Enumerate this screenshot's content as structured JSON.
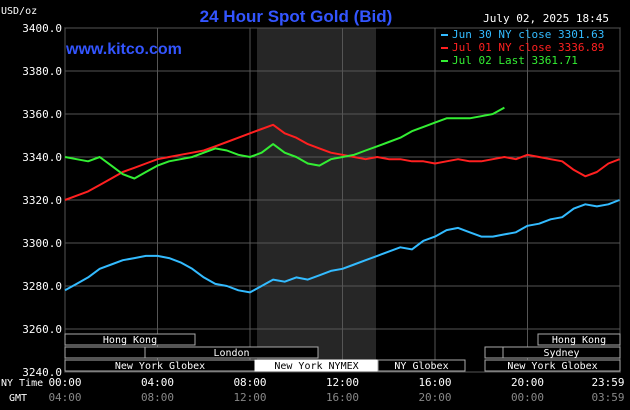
{
  "chart": {
    "title": "24 Hour Spot Gold (Bid)",
    "unit_label": "USD/oz",
    "website": "www.kitco.com",
    "timestamp": "July 02, 2025 18:45",
    "x_row_label_ny": "NY Time",
    "x_row_label_gmt": "GMT",
    "markets": [
      {
        "label": "Hong Kong"
      },
      {
        "label": "London"
      },
      {
        "label": "New York Globex"
      },
      {
        "label": "New York NYMEX"
      },
      {
        "label": "NY Globex"
      },
      {
        "label": "Sydney"
      },
      {
        "label": "New York Globex"
      },
      {
        "label": "Hong Kong"
      }
    ]
  },
  "chart_data": {
    "type": "line",
    "title": "24 Hour Spot Gold (Bid)",
    "xlabel": "NY Time",
    "ylabel": "USD/oz",
    "ylim": [
      3240,
      3400
    ],
    "xlim": [
      0,
      24
    ],
    "y_ticks": [
      "3400.0",
      "3380.0",
      "3360.0",
      "3340.0",
      "3320.0",
      "3300.0",
      "3280.0",
      "3260.0",
      "3240.0"
    ],
    "x_ticks_ny": [
      "00:00",
      "04:00",
      "08:00",
      "12:00",
      "16:00",
      "20:00",
      "23:59"
    ],
    "x_ticks_gmt": [
      "04:00",
      "08:00",
      "12:00",
      "16:00",
      "20:00",
      "00:00",
      "03:59"
    ],
    "grid": true,
    "legend_position": "top-right",
    "series": [
      {
        "name": "Jun 30 NY close 3301.63",
        "color": "#33bbff",
        "x": [
          0,
          0.5,
          1,
          1.5,
          2,
          2.5,
          3,
          3.5,
          4,
          4.5,
          5,
          5.5,
          6,
          6.5,
          7,
          7.5,
          8,
          8.5,
          9,
          9.5,
          10,
          10.5,
          11,
          11.5,
          12,
          12.5,
          13,
          13.5,
          14,
          14.5,
          15,
          15.5,
          16,
          16.5,
          17,
          17.5,
          18,
          18.5,
          19,
          19.5,
          20,
          20.5,
          21,
          21.5,
          22,
          22.5,
          23,
          23.5,
          23.98
        ],
        "y": [
          3278,
          3281,
          3284,
          3288,
          3290,
          3292,
          3293,
          3294,
          3294,
          3293,
          3291,
          3288,
          3284,
          3281,
          3280,
          3278,
          3277,
          3280,
          3283,
          3282,
          3284,
          3283,
          3285,
          3287,
          3288,
          3290,
          3292,
          3294,
          3296,
          3298,
          3297,
          3301,
          3303,
          3306,
          3307,
          3305,
          3303,
          3303,
          3304,
          3305,
          3308,
          3309,
          3311,
          3312,
          3316,
          3318,
          3317,
          3318,
          3320
        ]
      },
      {
        "name": "Jul 01 NY close 3336.89",
        "color": "#ff2020",
        "x": [
          0,
          0.5,
          1,
          1.5,
          2,
          2.5,
          3,
          3.5,
          4,
          4.5,
          5,
          5.5,
          6,
          6.5,
          7,
          7.5,
          8,
          8.5,
          9,
          9.5,
          10,
          10.5,
          11,
          11.5,
          12,
          12.5,
          13,
          13.5,
          14,
          14.5,
          15,
          15.5,
          16,
          16.5,
          17,
          17.5,
          18,
          18.5,
          19,
          19.5,
          20,
          20.5,
          21,
          21.5,
          22,
          22.5,
          23,
          23.5,
          23.98
        ],
        "y": [
          3320,
          3322,
          3324,
          3327,
          3330,
          3333,
          3335,
          3337,
          3339,
          3340,
          3341,
          3342,
          3343,
          3345,
          3347,
          3349,
          3351,
          3353,
          3355,
          3351,
          3349,
          3346,
          3344,
          3342,
          3341,
          3340,
          3339,
          3340,
          3339,
          3339,
          3338,
          3338,
          3337,
          3338,
          3339,
          3338,
          3338,
          3339,
          3340,
          3339,
          3341,
          3340,
          3339,
          3338,
          3334,
          3331,
          3333,
          3337,
          3339
        ]
      },
      {
        "name": "Jul 02 Last 3361.71",
        "color": "#33ee33",
        "x": [
          0,
          0.5,
          1,
          1.5,
          2,
          2.5,
          3,
          3.5,
          4,
          4.5,
          5,
          5.5,
          6,
          6.5,
          7,
          7.5,
          8,
          8.5,
          9,
          9.5,
          10,
          10.5,
          11,
          11.5,
          12,
          12.5,
          13,
          13.5,
          14,
          14.5,
          15,
          15.5,
          16,
          16.5,
          17,
          17.5,
          18,
          18.5,
          19
        ],
        "y": [
          3340,
          3339,
          3338,
          3340,
          3336,
          3332,
          3330,
          3333,
          3336,
          3338,
          3339,
          3340,
          3342,
          3344,
          3343,
          3341,
          3340,
          3342,
          3346,
          3342,
          3340,
          3337,
          3336,
          3339,
          3340,
          3341,
          3343,
          3345,
          3347,
          3349,
          3352,
          3354,
          3356,
          3358,
          3358,
          3358,
          3359,
          3360,
          3363
        ]
      }
    ]
  }
}
